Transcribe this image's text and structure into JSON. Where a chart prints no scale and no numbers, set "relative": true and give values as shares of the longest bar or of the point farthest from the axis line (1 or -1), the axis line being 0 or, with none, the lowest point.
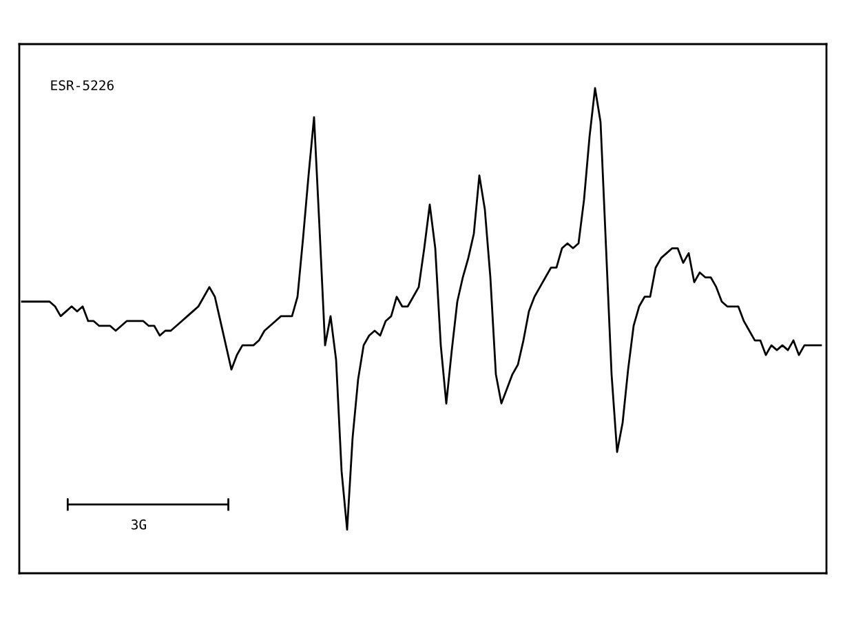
{
  "chart_data": {
    "type": "line",
    "relative": true,
    "tick_labels": false,
    "marker": "none",
    "line_style": "solid",
    "annotations": [
      "ESR-5226",
      "3G"
    ],
    "categories": [
      null,
      null,
      null,
      null,
      null,
      null,
      null,
      null,
      null,
      null,
      null,
      null,
      null,
      null,
      null,
      null,
      null,
      null,
      null,
      null,
      null,
      null,
      null,
      null,
      null,
      null,
      null,
      null,
      null,
      null,
      null,
      null,
      null,
      null,
      null,
      null,
      null,
      null,
      null,
      null,
      null,
      null,
      null,
      null,
      null,
      null,
      null,
      null,
      null,
      null,
      null,
      null,
      null,
      null,
      null,
      null,
      null,
      null,
      null,
      null,
      null,
      null,
      null,
      null,
      null,
      null,
      null,
      null,
      null,
      null,
      null,
      null,
      null,
      null,
      null,
      null,
      null,
      null,
      null,
      null,
      null,
      null,
      null,
      null,
      null,
      null,
      null,
      null,
      null,
      null,
      null,
      null,
      null,
      null,
      null,
      null,
      null,
      null,
      null,
      null,
      null,
      null,
      null,
      null,
      null,
      null,
      null,
      null,
      null,
      null,
      null,
      null,
      null,
      null,
      null,
      null,
      null,
      null,
      null,
      null,
      null,
      null,
      null,
      null,
      null,
      null,
      null,
      null,
      null,
      null,
      null,
      null,
      null,
      null,
      null,
      null,
      null,
      null,
      null,
      null,
      null,
      null,
      null,
      null,
      null,
      null
    ],
    "series": [
      {
        "color": "#000000",
        "values": [
          0.56,
          0.56,
          0.56,
          0.56,
          0.56,
          0.56,
          0.55,
          0.53,
          0.54,
          0.55,
          0.54,
          0.55,
          0.52,
          0.52,
          0.51,
          0.51,
          0.51,
          0.5,
          0.51,
          0.52,
          0.52,
          0.52,
          0.52,
          0.51,
          0.51,
          0.49,
          0.5,
          0.5,
          0.51,
          0.52,
          0.53,
          0.54,
          0.55,
          0.57,
          0.59,
          0.57,
          0.52,
          0.47,
          0.42,
          0.45,
          0.47,
          0.47,
          0.47,
          0.48,
          0.5,
          0.51,
          0.52,
          0.53,
          0.53,
          0.53,
          0.57,
          0.69,
          0.82,
          0.94,
          0.71,
          0.47,
          0.53,
          0.44,
          0.21,
          0.09,
          0.28,
          0.4,
          0.47,
          0.49,
          0.5,
          0.49,
          0.52,
          0.53,
          0.57,
          0.55,
          0.55,
          0.57,
          0.59,
          0.67,
          0.76,
          0.67,
          0.47,
          0.35,
          0.46,
          0.56,
          0.61,
          0.65,
          0.7,
          0.82,
          0.75,
          0.61,
          0.41,
          0.35,
          0.38,
          0.41,
          0.43,
          0.48,
          0.54,
          0.57,
          0.59,
          0.61,
          0.63,
          0.63,
          0.67,
          0.68,
          0.67,
          0.68,
          0.77,
          0.9,
          1,
          0.93,
          0.67,
          0.41,
          0.25,
          0.31,
          0.42,
          0.51,
          0.55,
          0.57,
          0.57,
          0.63,
          0.65,
          0.66,
          0.67,
          0.67,
          0.64,
          0.66,
          0.6,
          0.62,
          0.61,
          0.61,
          0.59,
          0.56,
          0.55,
          0.55,
          0.55,
          0.52,
          0.5,
          0.48,
          0.48,
          0.45,
          0.47,
          0.46,
          0.47,
          0.46,
          0.48,
          0.45,
          0.47,
          0.47,
          0.47,
          0.47
        ]
      }
    ]
  }
}
